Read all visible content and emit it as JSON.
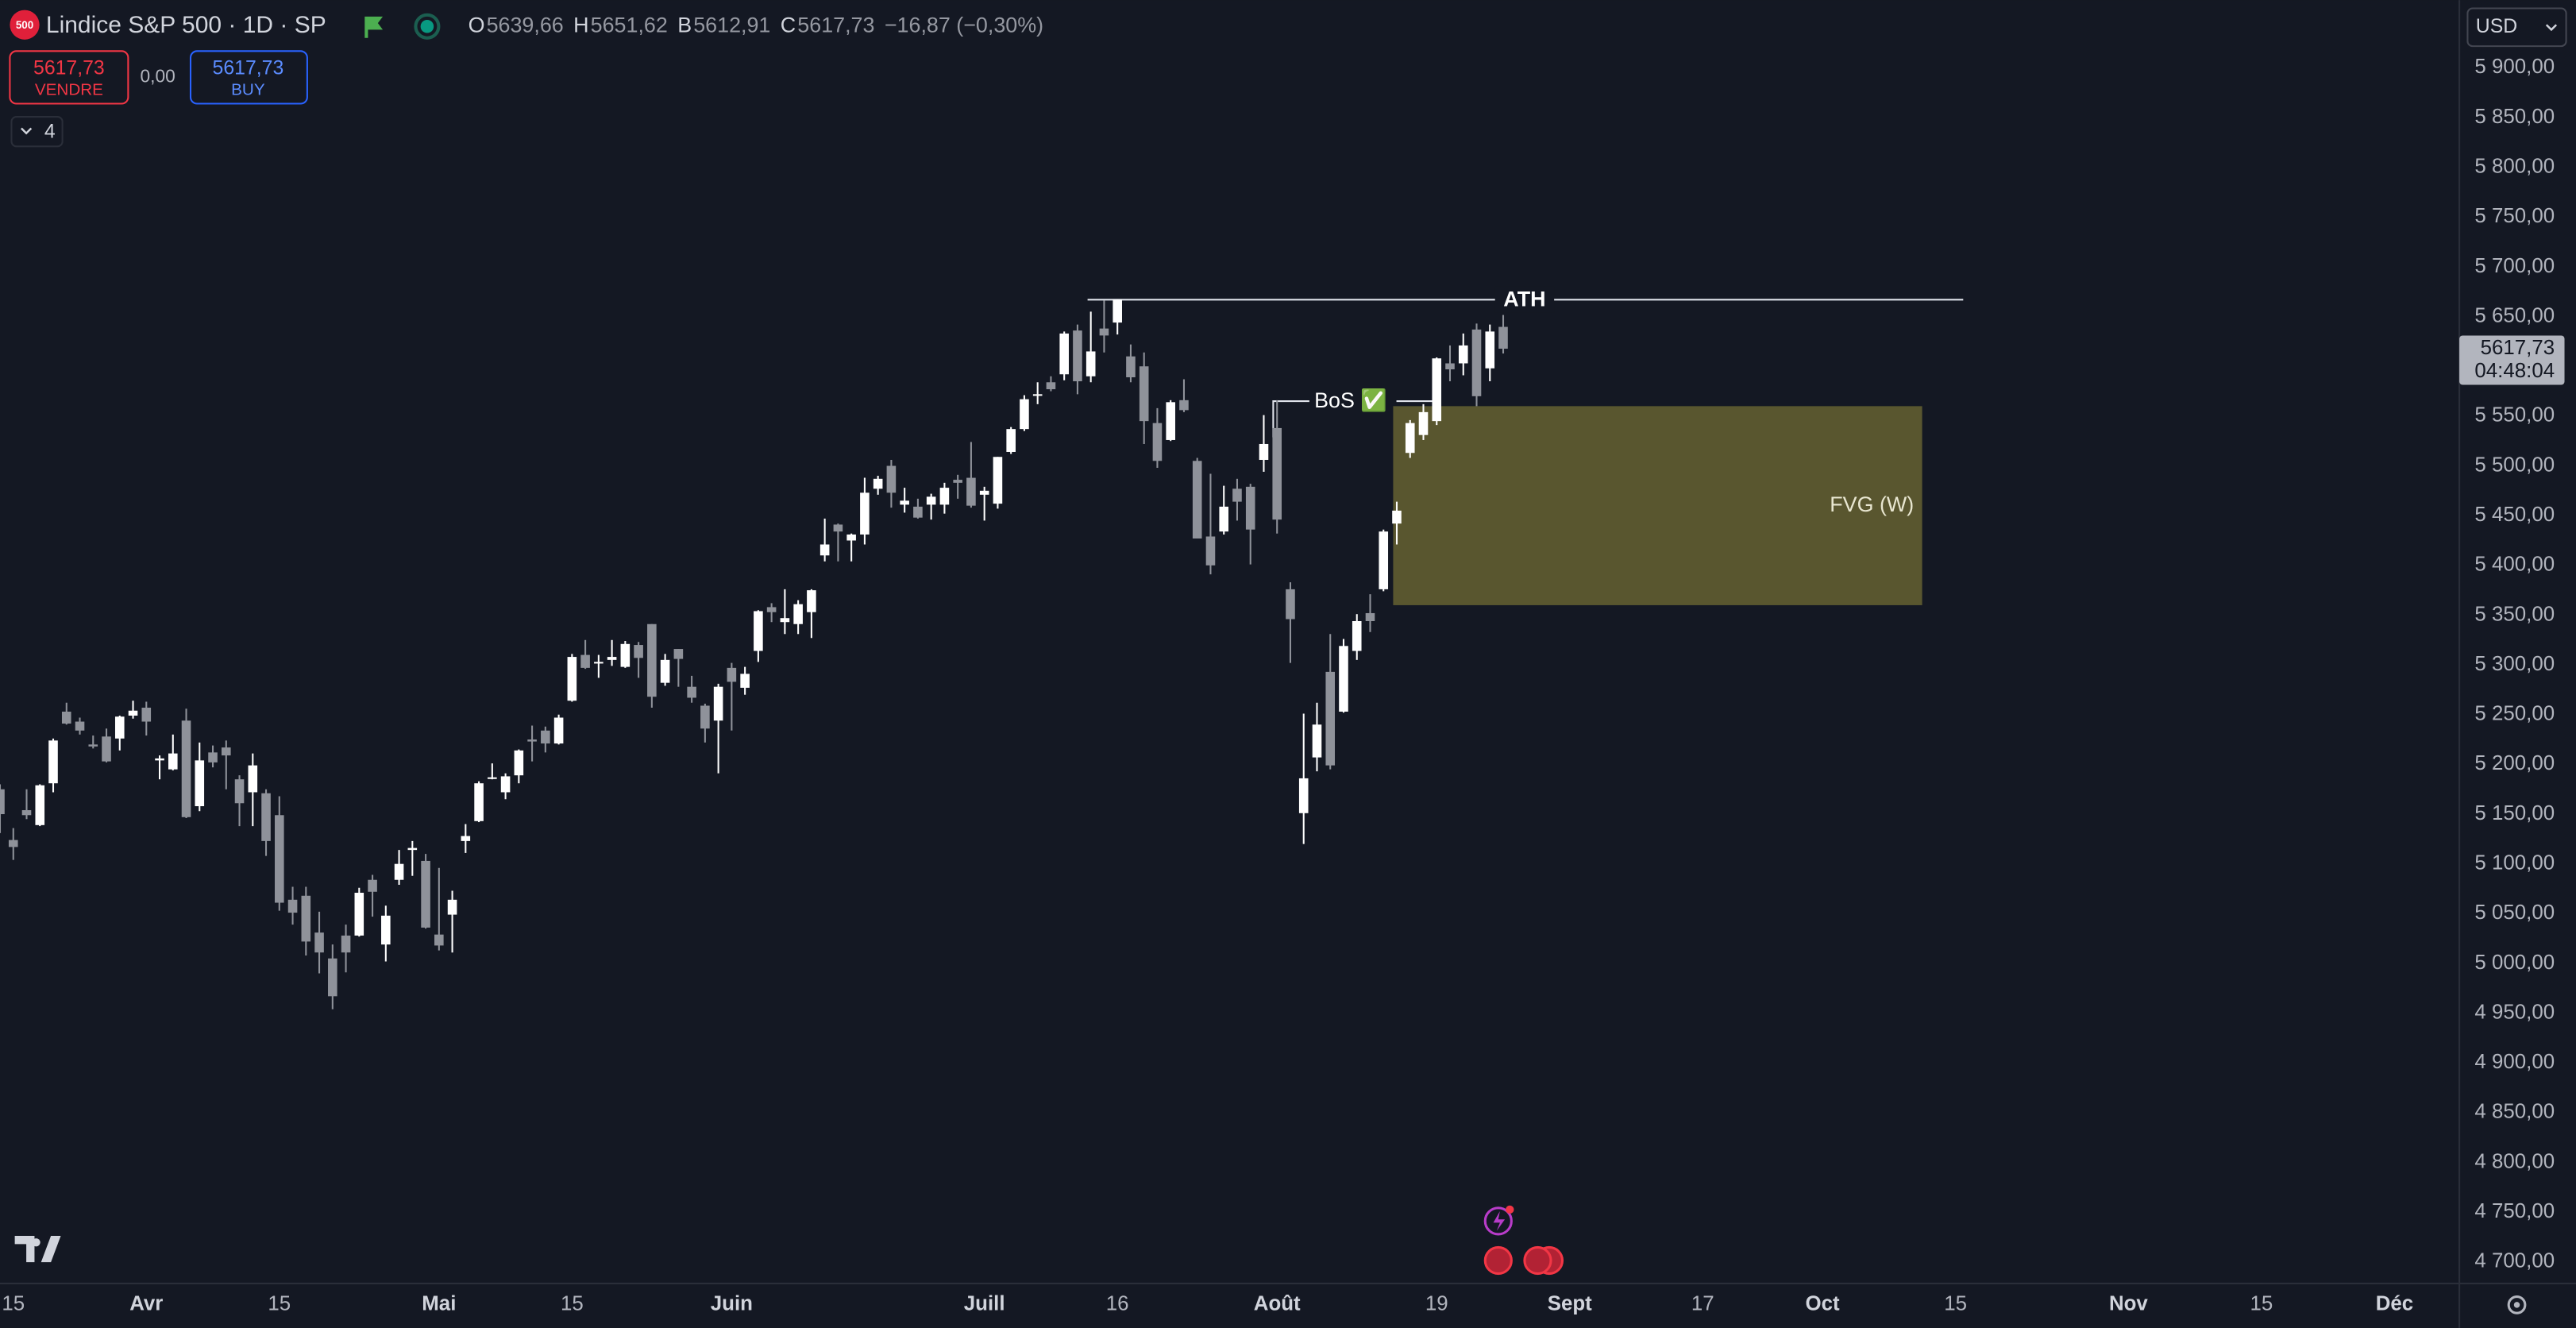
{
  "toolbar": {
    "badge": "500",
    "symbol": "Lindice S&P 500 · 1D · SP",
    "quote": [
      {
        "key": "O",
        "value": "5639,66"
      },
      {
        "key": "H",
        "value": "5651,62"
      },
      {
        "key": "B",
        "value": "5612,91"
      },
      {
        "key": "C",
        "value": "5617,73"
      }
    ],
    "change": "−16,87 (−0,30%)",
    "sell_price": "5617,73",
    "sell_label": "VENDRE",
    "spread": "0,00",
    "buy_price": "5617,73",
    "buy_label": "BUY",
    "indicators_count": "4",
    "currency": "USD",
    "price_label": "5617,73",
    "countdown": "04:48:04"
  },
  "chart_data": {
    "type": "candlestick",
    "grid": false,
    "up_color": "#ffffff",
    "down_color": "#8f929a",
    "xlim": [
      0,
      185
    ],
    "ylim": [
      4680,
      5968
    ],
    "xticks": [
      {
        "value": 1,
        "label": "15"
      },
      {
        "value": 11,
        "label": "Avr"
      },
      {
        "value": 21,
        "label": "15"
      },
      {
        "value": 33,
        "label": "Mai"
      },
      {
        "value": 43,
        "label": "15"
      },
      {
        "value": 55,
        "label": "Juin"
      },
      {
        "value": 74,
        "label": "Juill"
      },
      {
        "value": 84,
        "label": "16"
      },
      {
        "value": 96,
        "label": "Août"
      },
      {
        "value": 108,
        "label": "19"
      },
      {
        "value": 118,
        "label": "Sept"
      },
      {
        "value": 128,
        "label": "17"
      },
      {
        "value": 137,
        "label": "Oct"
      },
      {
        "value": 147,
        "label": "15"
      },
      {
        "value": 160,
        "label": "Nov"
      },
      {
        "value": 170,
        "label": "15"
      },
      {
        "value": 180,
        "label": "Déc"
      }
    ],
    "yticks": [
      {
        "value": 5900,
        "label": "5 900,00"
      },
      {
        "value": 5850,
        "label": "5 850,00"
      },
      {
        "value": 5800,
        "label": "5 800,00"
      },
      {
        "value": 5750,
        "label": "5 750,00"
      },
      {
        "value": 5700,
        "label": "5 700,00"
      },
      {
        "value": 5650,
        "label": "5 650,00"
      },
      {
        "value": 5600,
        "label": "5 600,00"
      },
      {
        "value": 5550,
        "label": "5 550,00"
      },
      {
        "value": 5500,
        "label": "5 500,00"
      },
      {
        "value": 5450,
        "label": "5 450,00"
      },
      {
        "value": 5400,
        "label": "5 400,00"
      },
      {
        "value": 5350,
        "label": "5 350,00"
      },
      {
        "value": 5300,
        "label": "5 300,00"
      },
      {
        "value": 5250,
        "label": "5 250,00"
      },
      {
        "value": 5200,
        "label": "5 200,00"
      },
      {
        "value": 5150,
        "label": "5 150,00"
      },
      {
        "value": 5100,
        "label": "5 100,00"
      },
      {
        "value": 5050,
        "label": "5 050,00"
      },
      {
        "value": 5000,
        "label": "5 000,00"
      },
      {
        "value": 4950,
        "label": "4 950,00"
      },
      {
        "value": 4900,
        "label": "4 900,00"
      },
      {
        "value": 4850,
        "label": "4 850,00"
      },
      {
        "value": 4800,
        "label": "4 800,00"
      },
      {
        "value": 4750,
        "label": "4 750,00"
      },
      {
        "value": 4700,
        "label": "4 700,00"
      }
    ],
    "candles": {
      "open": [
        5175,
        5124,
        5154,
        5139,
        5181,
        5253,
        5243,
        5220,
        5228,
        5226,
        5249,
        5257,
        5204,
        5195,
        5244,
        5158,
        5212,
        5217,
        5185,
        5172,
        5171,
        5149,
        5064,
        5068,
        5031,
        5005,
        5028,
        5028,
        5084,
        5019,
        5084,
        5114,
        5103,
        5029,
        5049,
        5123,
        5143,
        5187,
        5172,
        5189,
        5225,
        5234,
        5221,
        5264,
        5310,
        5303,
        5305,
        5298,
        5320,
        5341,
        5282,
        5316,
        5278,
        5259,
        5244,
        5297,
        5277,
        5314,
        5358,
        5343,
        5341,
        5353,
        5410,
        5441,
        5425,
        5431,
        5477,
        5500,
        5461,
        5459,
        5461,
        5461,
        5486,
        5488,
        5471,
        5462,
        5514,
        5537,
        5572,
        5584,
        5592,
        5636,
        5590,
        5638,
        5644,
        5610,
        5600,
        5543,
        5526,
        5566,
        5505,
        5429,
        5434,
        5477,
        5479,
        5506,
        5538,
        5376,
        5151,
        5207,
        5293,
        5253,
        5314,
        5352,
        5376,
        5442,
        5513,
        5531,
        5545,
        5603,
        5603,
        5637,
        5598,
        5639.66
      ],
      "high": [
        5180,
        5136,
        5175,
        5180,
        5226,
        5262,
        5247,
        5229,
        5236,
        5249,
        5264,
        5263,
        5209,
        5230,
        5256,
        5222,
        5219,
        5224,
        5189,
        5211,
        5175,
        5168,
        5077,
        5077,
        5052,
        5019,
        5039,
        5076,
        5089,
        5058,
        5114,
        5123,
        5110,
        5096,
        5073,
        5140,
        5183,
        5201,
        5191,
        5215,
        5239,
        5238,
        5250,
        5311,
        5325,
        5310,
        5325,
        5324,
        5323,
        5341,
        5311,
        5316,
        5289,
        5261,
        5281,
        5302,
        5298,
        5355,
        5362,
        5376,
        5365,
        5376,
        5447,
        5442,
        5432,
        5488,
        5490,
        5506,
        5478,
        5467,
        5472,
        5483,
        5491,
        5524,
        5479,
        5509,
        5539,
        5571,
        5584,
        5590,
        5635,
        5642,
        5655,
        5666,
        5667,
        5622,
        5614,
        5558,
        5566,
        5587,
        5508,
        5492,
        5480,
        5487,
        5482,
        5551,
        5566,
        5383,
        5251,
        5262,
        5331,
        5326,
        5351,
        5371,
        5436,
        5464,
        5546,
        5562,
        5609,
        5621,
        5633,
        5643,
        5642,
        5651.62
      ],
      "low": [
        5131,
        5104,
        5145,
        5138,
        5172,
        5240,
        5230,
        5216,
        5202,
        5214,
        5246,
        5229,
        5185,
        5194,
        5146,
        5153,
        5197,
        5175,
        5138,
        5138,
        5108,
        5053,
        5039,
        5008,
        4990,
        4954,
        4991,
        5027,
        5047,
        5002,
        5079,
        5088,
        5035,
        5013,
        5011,
        5111,
        5142,
        5185,
        5165,
        5181,
        5203,
        5212,
        5220,
        5263,
        5296,
        5287,
        5299,
        5297,
        5287,
        5257,
        5279,
        5278,
        5262,
        5222,
        5191,
        5234,
        5270,
        5303,
        5343,
        5331,
        5331,
        5327,
        5404,
        5404,
        5404,
        5421,
        5471,
        5458,
        5453,
        5447,
        5446,
        5452,
        5467,
        5458,
        5445,
        5457,
        5512,
        5535,
        5562,
        5575,
        5586,
        5572,
        5584,
        5614,
        5632,
        5584,
        5522,
        5498,
        5525,
        5554,
        5427,
        5391,
        5431,
        5445,
        5401,
        5494,
        5432,
        5302,
        5120,
        5193,
        5195,
        5252,
        5305,
        5333,
        5374,
        5421,
        5508,
        5526,
        5541,
        5585,
        5591,
        5560,
        5585,
        5612.91
      ],
      "close": [
        5150,
        5117,
        5149,
        5179,
        5224,
        5241,
        5234,
        5218,
        5203,
        5248,
        5254,
        5243,
        5206,
        5211,
        5147,
        5204,
        5202,
        5209,
        5161,
        5199,
        5123,
        5061,
        5051,
        5022,
        5011,
        4967,
        5011,
        5071,
        5072,
        5048,
        5100,
        5116,
        5036,
        5018,
        5064,
        5128,
        5181,
        5187,
        5188,
        5214,
        5223,
        5221,
        5247,
        5308,
        5297,
        5303,
        5308,
        5321,
        5307,
        5268,
        5305,
        5306,
        5267,
        5236,
        5278,
        5283,
        5291,
        5354,
        5353,
        5347,
        5361,
        5375,
        5421,
        5434,
        5431,
        5473,
        5487,
        5473,
        5465,
        5448,
        5469,
        5478,
        5483,
        5460,
        5475,
        5509,
        5537,
        5567,
        5572,
        5577,
        5633,
        5585,
        5615,
        5631,
        5667,
        5589,
        5545,
        5505,
        5564,
        5556,
        5427,
        5400,
        5459,
        5464,
        5436,
        5522,
        5446,
        5346,
        5186,
        5240,
        5199,
        5319,
        5344,
        5344,
        5434,
        5455,
        5543,
        5554,
        5608,
        5597,
        5621,
        5570,
        5635,
        5617.73
      ]
    },
    "ath": {
      "label": "ATH",
      "level": 5667
    },
    "bos": {
      "label": "BoS ✅",
      "level": 5565
    },
    "fvg": {
      "label": "FVG (W)",
      "top": 5560,
      "bottom": 5360,
      "color": "#5d5a30"
    }
  }
}
